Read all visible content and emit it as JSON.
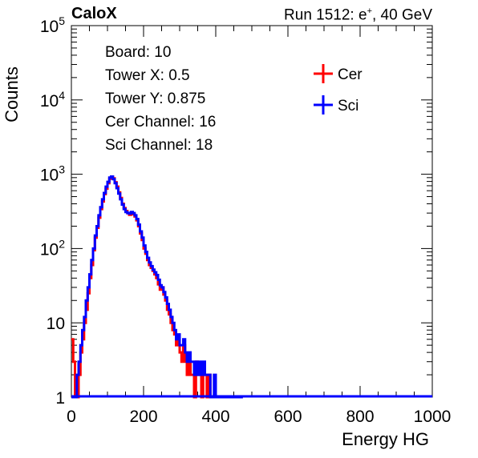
{
  "header": {
    "experiment": "CaloX",
    "run_text": "Run 1512: e",
    "run_sup": "+",
    "run_tail": ", 40 GeV"
  },
  "info_box": [
    "Board: 10",
    "Tower X: 0.5",
    "Tower Y: 0.875",
    "Cer Channel: 16",
    "Sci Channel: 18"
  ],
  "chart_data": {
    "type": "line",
    "title": "",
    "xlabel": "Energy HG",
    "ylabel": "Counts",
    "xlim": [
      0,
      1000
    ],
    "ylim": [
      1,
      100000
    ],
    "yscale": "log",
    "x_ticks": [
      0,
      200,
      400,
      600,
      800,
      1000
    ],
    "y_ticks": [
      {
        "value": 1,
        "base": "1",
        "exp": ""
      },
      {
        "value": 10,
        "base": "10",
        "exp": ""
      },
      {
        "value": 100,
        "base": "10",
        "exp": "2"
      },
      {
        "value": 1000,
        "base": "10",
        "exp": "3"
      },
      {
        "value": 10000,
        "base": "10",
        "exp": "4"
      },
      {
        "value": 100000,
        "base": "10",
        "exp": "5"
      }
    ],
    "legend_position": "top-right",
    "series": [
      {
        "name": "Cer",
        "color": "#ff0000",
        "points": [
          [
            0,
            6
          ],
          [
            5,
            3
          ],
          [
            10,
            1
          ],
          [
            15,
            1
          ],
          [
            20,
            2
          ],
          [
            25,
            4
          ],
          [
            30,
            6
          ],
          [
            35,
            10
          ],
          [
            40,
            15
          ],
          [
            45,
            25
          ],
          [
            50,
            40
          ],
          [
            55,
            60
          ],
          [
            60,
            95
          ],
          [
            65,
            140
          ],
          [
            70,
            190
          ],
          [
            75,
            260
          ],
          [
            80,
            340
          ],
          [
            85,
            430
          ],
          [
            90,
            540
          ],
          [
            95,
            640
          ],
          [
            100,
            760
          ],
          [
            105,
            870
          ],
          [
            110,
            920
          ],
          [
            115,
            880
          ],
          [
            120,
            780
          ],
          [
            125,
            680
          ],
          [
            130,
            570
          ],
          [
            135,
            480
          ],
          [
            140,
            400
          ],
          [
            145,
            350
          ],
          [
            150,
            320
          ],
          [
            155,
            300
          ],
          [
            160,
            285
          ],
          [
            165,
            300
          ],
          [
            170,
            290
          ],
          [
            175,
            270
          ],
          [
            180,
            240
          ],
          [
            185,
            200
          ],
          [
            190,
            160
          ],
          [
            195,
            130
          ],
          [
            200,
            100
          ],
          [
            205,
            85
          ],
          [
            210,
            70
          ],
          [
            215,
            60
          ],
          [
            220,
            55
          ],
          [
            225,
            50
          ],
          [
            230,
            45
          ],
          [
            235,
            40
          ],
          [
            240,
            33
          ],
          [
            245,
            28
          ],
          [
            250,
            30
          ],
          [
            255,
            24
          ],
          [
            260,
            20
          ],
          [
            265,
            15
          ],
          [
            270,
            13
          ],
          [
            275,
            10
          ],
          [
            280,
            8
          ],
          [
            285,
            7
          ],
          [
            290,
            5
          ],
          [
            295,
            6
          ],
          [
            300,
            4
          ],
          [
            305,
            3
          ],
          [
            310,
            5
          ],
          [
            315,
            3
          ],
          [
            320,
            2
          ],
          [
            325,
            3
          ],
          [
            330,
            2
          ],
          [
            335,
            2
          ],
          [
            340,
            1
          ],
          [
            345,
            3
          ],
          [
            350,
            2
          ],
          [
            355,
            2
          ],
          [
            360,
            1
          ],
          [
            365,
            2
          ],
          [
            370,
            2
          ],
          [
            375,
            1
          ],
          [
            380,
            2
          ],
          [
            385,
            1
          ],
          [
            390,
            1
          ],
          [
            395,
            1
          ],
          [
            400,
            1
          ],
          [
            410,
            1
          ],
          [
            420,
            1
          ],
          [
            430,
            1
          ],
          [
            440,
            1
          ],
          [
            450,
            1
          ],
          [
            460,
            1
          ],
          [
            470,
            1
          ]
        ]
      },
      {
        "name": "Sci",
        "color": "#0000ff",
        "points": [
          [
            0,
            1
          ],
          [
            5,
            1
          ],
          [
            10,
            1
          ],
          [
            15,
            2
          ],
          [
            20,
            3
          ],
          [
            25,
            5
          ],
          [
            30,
            8
          ],
          [
            35,
            12
          ],
          [
            40,
            20
          ],
          [
            45,
            30
          ],
          [
            50,
            45
          ],
          [
            55,
            70
          ],
          [
            60,
            100
          ],
          [
            65,
            150
          ],
          [
            70,
            200
          ],
          [
            75,
            280
          ],
          [
            80,
            360
          ],
          [
            85,
            460
          ],
          [
            90,
            560
          ],
          [
            95,
            680
          ],
          [
            100,
            790
          ],
          [
            105,
            900
          ],
          [
            110,
            930
          ],
          [
            115,
            860
          ],
          [
            120,
            760
          ],
          [
            125,
            650
          ],
          [
            130,
            550
          ],
          [
            135,
            460
          ],
          [
            140,
            390
          ],
          [
            145,
            340
          ],
          [
            150,
            310
          ],
          [
            155,
            300
          ],
          [
            160,
            295
          ],
          [
            165,
            310
          ],
          [
            170,
            300
          ],
          [
            175,
            280
          ],
          [
            180,
            250
          ],
          [
            185,
            210
          ],
          [
            190,
            170
          ],
          [
            195,
            140
          ],
          [
            200,
            110
          ],
          [
            205,
            90
          ],
          [
            210,
            75
          ],
          [
            215,
            65
          ],
          [
            220,
            58
          ],
          [
            225,
            52
          ],
          [
            230,
            48
          ],
          [
            235,
            44
          ],
          [
            240,
            38
          ],
          [
            245,
            32
          ],
          [
            250,
            30
          ],
          [
            255,
            26
          ],
          [
            260,
            22
          ],
          [
            265,
            18
          ],
          [
            270,
            15
          ],
          [
            275,
            12
          ],
          [
            280,
            10
          ],
          [
            285,
            8
          ],
          [
            290,
            6
          ],
          [
            295,
            7
          ],
          [
            300,
            5
          ],
          [
            305,
            5
          ],
          [
            310,
            6
          ],
          [
            315,
            4
          ],
          [
            320,
            3
          ],
          [
            325,
            4
          ],
          [
            330,
            3
          ],
          [
            335,
            3
          ],
          [
            340,
            2
          ],
          [
            345,
            3
          ],
          [
            350,
            2
          ],
          [
            355,
            3
          ],
          [
            360,
            2
          ],
          [
            365,
            3
          ],
          [
            370,
            2
          ],
          [
            375,
            2
          ],
          [
            380,
            2
          ],
          [
            385,
            1
          ],
          [
            390,
            1
          ],
          [
            395,
            2
          ],
          [
            400,
            1
          ],
          [
            410,
            1
          ],
          [
            420,
            1
          ],
          [
            430,
            1
          ],
          [
            440,
            1
          ],
          [
            450,
            1
          ],
          [
            460,
            1
          ],
          [
            470,
            1
          ]
        ]
      }
    ]
  }
}
